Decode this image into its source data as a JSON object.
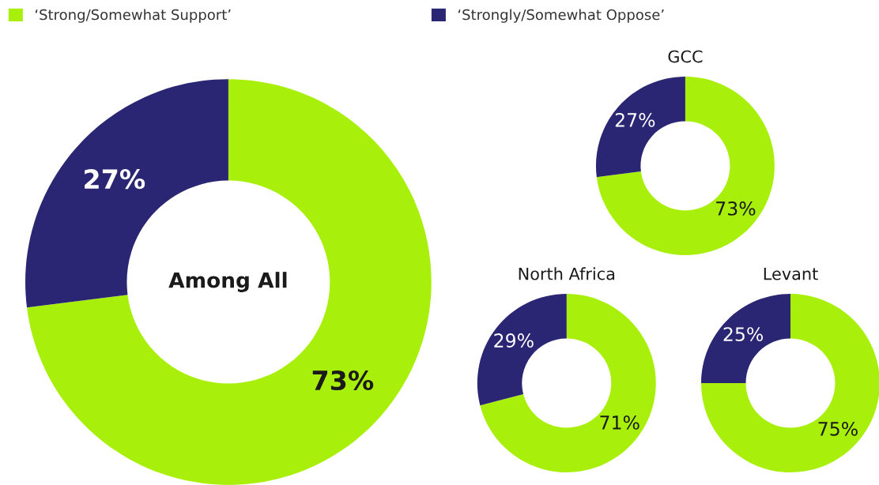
{
  "chart_data": [
    {
      "type": "donut",
      "title": "Among All",
      "categories": [
        "‘Strong/Somewhat Support’",
        "‘Strongly/Somewhat Oppose’"
      ],
      "values": [
        73,
        27
      ],
      "colors": [
        "#a8f00c",
        "#2b2673"
      ],
      "value_labels": [
        "73%",
        "27%"
      ],
      "legend": "top"
    },
    {
      "type": "donut",
      "title": "GCC",
      "categories": [
        null,
        null
      ],
      "values": [
        73,
        27
      ],
      "colors": [
        "#a8f00c",
        "#2b2673"
      ],
      "value_labels": [
        "73%",
        "27%"
      ]
    },
    {
      "type": "donut",
      "title": "North Africa",
      "categories": [
        null,
        null
      ],
      "values": [
        71,
        29
      ],
      "colors": [
        "#a8f00c",
        "#2b2673"
      ],
      "value_labels": [
        "71%",
        "29%"
      ]
    },
    {
      "type": "donut",
      "title": "Levant",
      "categories": [
        null,
        null
      ],
      "values": [
        75,
        25
      ],
      "colors": [
        "#a8f00c",
        "#2b2673"
      ],
      "value_labels": [
        "75%",
        "25%"
      ]
    }
  ]
}
